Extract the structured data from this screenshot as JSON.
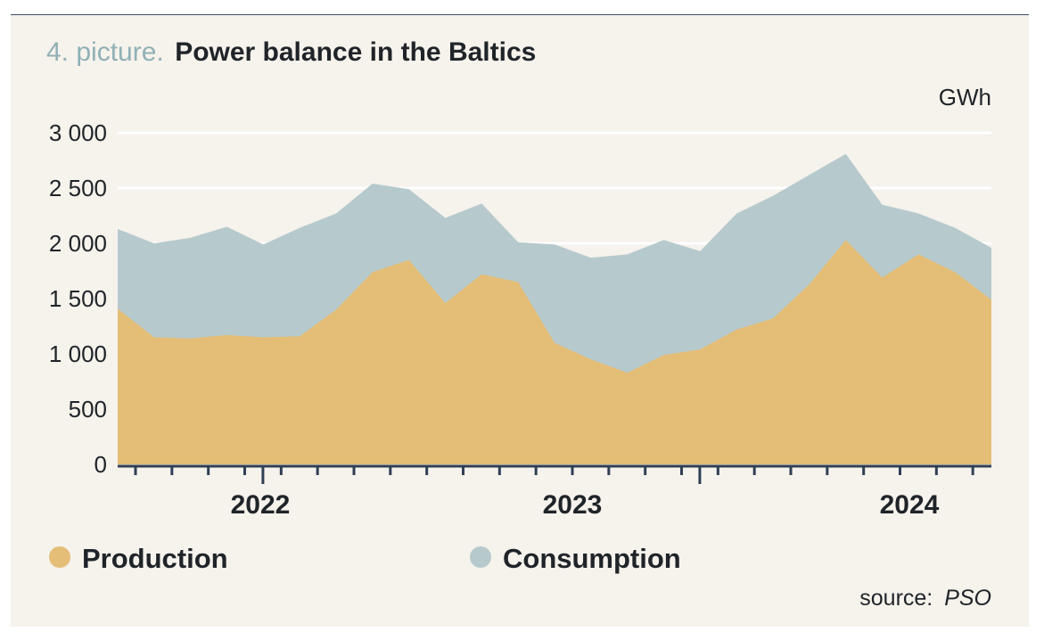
{
  "title_prefix": "4. picture.",
  "title": "Power balance in the Baltics",
  "unit": "GWh",
  "source_prefix": "source:",
  "source_name": "PSO",
  "colors": {
    "production": "#e4bd77",
    "consumption": "#b6cacd",
    "grid": "#ffffff",
    "axis": "#2f3f55",
    "background": "#f6f2ec"
  },
  "chart_data": {
    "type": "area",
    "y_ticks": [
      "0",
      "500",
      "1 000",
      "1 500",
      "2 000",
      "2 500",
      "3 000"
    ],
    "y_tick_values": [
      0,
      500,
      1000,
      1500,
      2000,
      2500,
      3000
    ],
    "ylim": [
      0,
      3000
    ],
    "year_labels": [
      "2022",
      "2023",
      "2024"
    ],
    "grid": true,
    "legend_position": "bottom",
    "series": [
      {
        "name": "Production",
        "values": [
          1410,
          1150,
          1140,
          1170,
          1150,
          1160,
          1400,
          1740,
          1850,
          1460,
          1720,
          1650,
          1100,
          950,
          830,
          990,
          1040,
          1220,
          1320,
          1630,
          2030,
          1690,
          1900,
          1740,
          1490
        ]
      },
      {
        "name": "Consumption",
        "values": [
          2130,
          2000,
          2050,
          2150,
          1990,
          2140,
          2270,
          2540,
          2490,
          2230,
          2360,
          2010,
          1990,
          1870,
          1900,
          2030,
          1930,
          2270,
          2430,
          2620,
          2810,
          2350,
          2270,
          2140,
          1960
        ]
      }
    ]
  }
}
